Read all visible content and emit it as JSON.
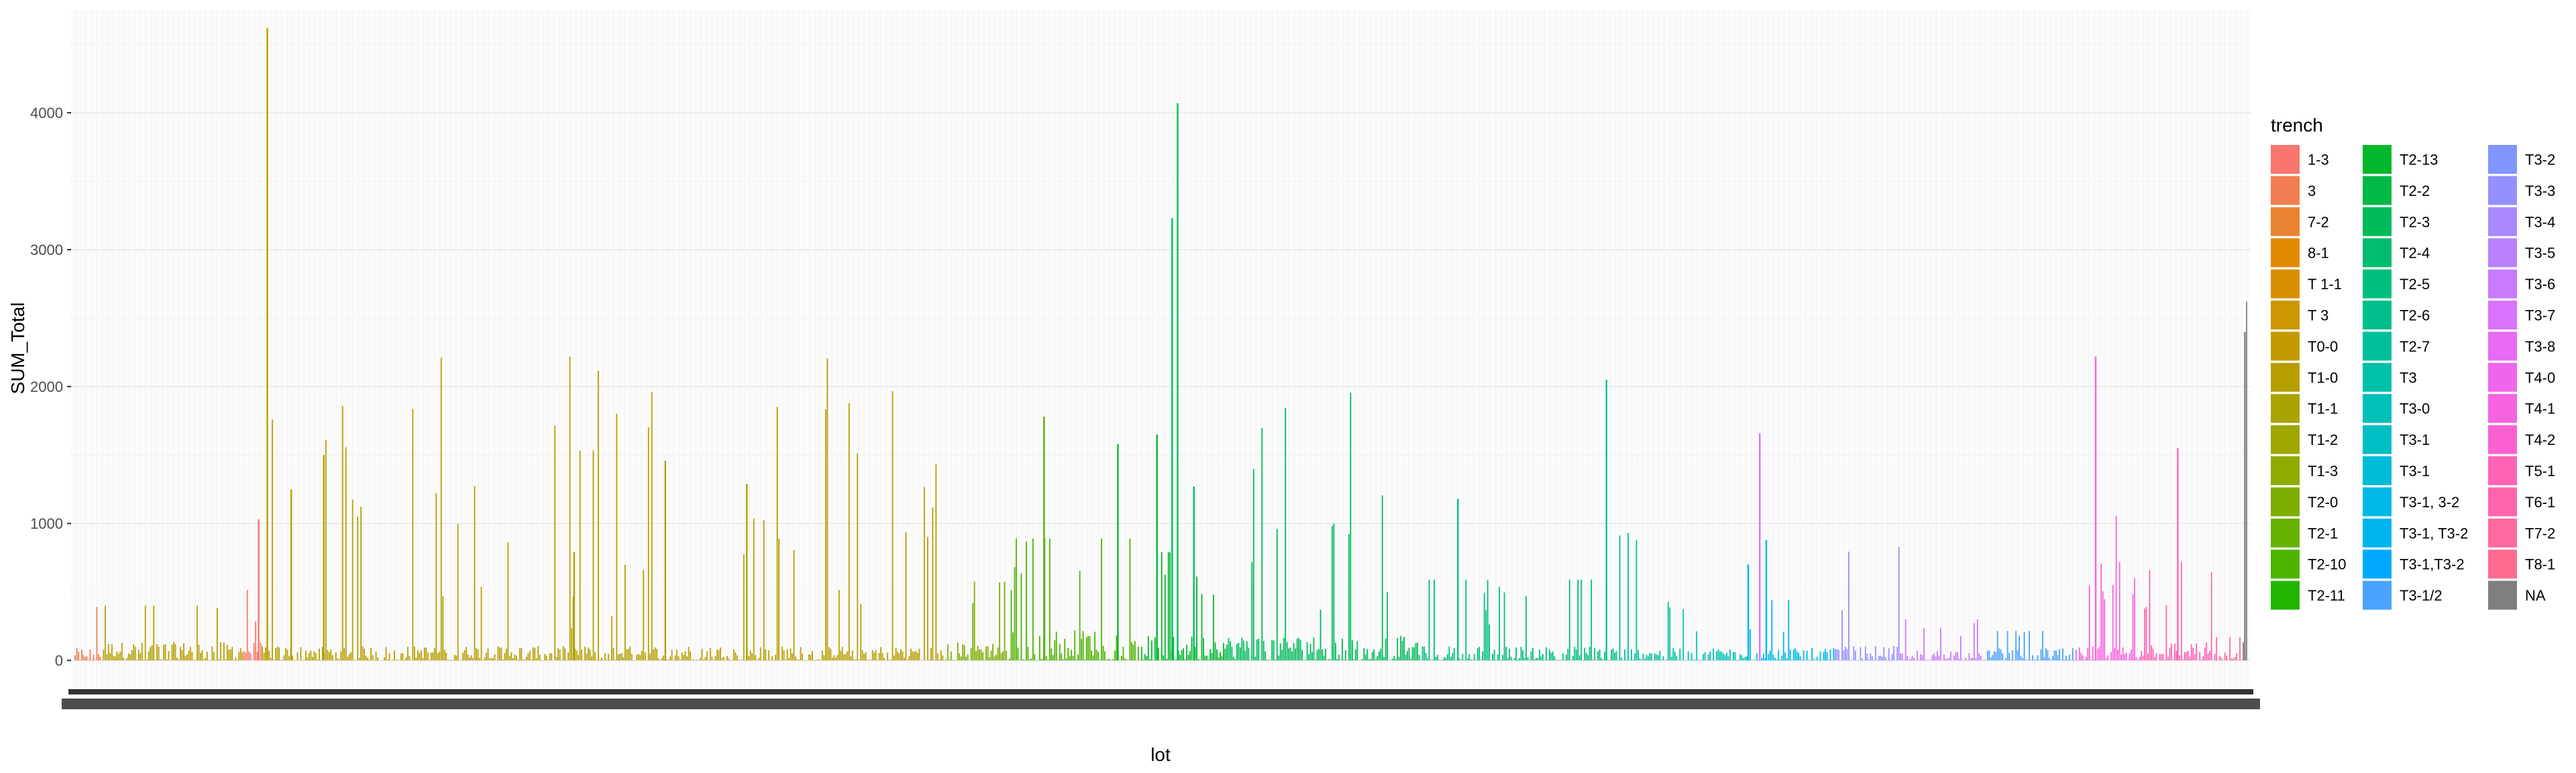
{
  "chart_data": {
    "type": "bar",
    "title": "",
    "xlabel": "lot",
    "ylabel": "SUM_Total",
    "ylim": [
      -200,
      4750
    ],
    "y_ticks": [
      0,
      1000,
      2000,
      3000,
      4000
    ],
    "y_tick_labels": [
      "0",
      "1000",
      "2000",
      "3000",
      "4000"
    ],
    "grid": true,
    "x_tick_labels_note": "x-axis tick labels are overplotted and illegible",
    "legend": {
      "title": "trench",
      "position": "right",
      "entries": [
        {
          "label": "1-3",
          "color": "#F8766D"
        },
        {
          "label": "3",
          "color": "#F27D52"
        },
        {
          "label": "7-2",
          "color": "#EA8331"
        },
        {
          "label": "8-1",
          "color": "#E18A00"
        },
        {
          "label": "T 1-1",
          "color": "#D89000"
        },
        {
          "label": "T 3",
          "color": "#CE9600"
        },
        {
          "label": "T0-0",
          "color": "#C49A00"
        },
        {
          "label": "T1-0",
          "color": "#B79F00"
        },
        {
          "label": "T1-1",
          "color": "#ABA300"
        },
        {
          "label": "T1-2",
          "color": "#9DA700"
        },
        {
          "label": "T1-3",
          "color": "#8EAB00"
        },
        {
          "label": "T2-0",
          "color": "#7CAE00"
        },
        {
          "label": "T2-1",
          "color": "#67B100"
        },
        {
          "label": "T2-10",
          "color": "#4DB400"
        },
        {
          "label": "T2-11",
          "color": "#22B600"
        },
        {
          "label": "T2-13",
          "color": "#00B82B"
        },
        {
          "label": "T2-2",
          "color": "#00BA45"
        },
        {
          "label": "T2-3",
          "color": "#00BB5A"
        },
        {
          "label": "T2-4",
          "color": "#00BC6C"
        },
        {
          "label": "T2-5",
          "color": "#00BE7D"
        },
        {
          "label": "T2-6",
          "color": "#00BF8D"
        },
        {
          "label": "T2-7",
          "color": "#00C09C"
        },
        {
          "label": "T3",
          "color": "#00C0AB"
        },
        {
          "label": "T3-0",
          "color": "#00C0B8"
        },
        {
          "label": "T3-1",
          "color": "#00BFC4"
        },
        {
          "label": "T3-1",
          "color": "#00BCD8"
        },
        {
          "label": "T3-1, 3-2",
          "color": "#00B8E5"
        },
        {
          "label": "T3-1, T3-2",
          "color": "#00B4F0"
        },
        {
          "label": "T3-1,T3-2",
          "color": "#00A9FF"
        },
        {
          "label": "T3-1/2",
          "color": "#4AA3FF"
        },
        {
          "label": "T3-2",
          "color": "#7F96FF"
        },
        {
          "label": "T3-3",
          "color": "#9590FF"
        },
        {
          "label": "T3-4",
          "color": "#A989FF"
        },
        {
          "label": "T3-5",
          "color": "#BA81FF"
        },
        {
          "label": "T3-6",
          "color": "#C97AFF"
        },
        {
          "label": "T3-7",
          "color": "#DA72FB"
        },
        {
          "label": "T3-8",
          "color": "#E76BF3"
        },
        {
          "label": "T4-0",
          "color": "#F066EA"
        },
        {
          "label": "T4-1",
          "color": "#F863DF"
        },
        {
          "label": "T4-2",
          "color": "#FD61D1"
        },
        {
          "label": "T5-1",
          "color": "#FF63B6"
        },
        {
          "label": "T6-1",
          "color": "#FF65AC"
        },
        {
          "label": "T7-2",
          "color": "#FF6AA0"
        },
        {
          "label": "T8-1",
          "color": "#FF6C91"
        },
        {
          "label": "NA",
          "color": "#7F7F7F"
        }
      ]
    },
    "segments": [
      {
        "trench_index": 1,
        "lot_range": [
          0.0,
          0.013
        ],
        "max": 780,
        "typical": 60
      },
      {
        "trench_index": 7,
        "lot_range": [
          0.013,
          0.077
        ],
        "max": 800,
        "typical": 90
      },
      {
        "trench_index": 0,
        "lot_range": [
          0.077,
          0.086
        ],
        "max": 1030,
        "typical": 90
      },
      {
        "trench_index": 7,
        "lot_range": [
          0.086,
          0.4
        ],
        "max": 4620,
        "typical": 70
      },
      {
        "trench_index": 11,
        "lot_range": [
          0.4,
          0.43
        ],
        "max": 1150,
        "typical": 90
      },
      {
        "trench_index": 13,
        "lot_range": [
          0.43,
          0.49
        ],
        "max": 1780,
        "typical": 150
      },
      {
        "trench_index": 15,
        "lot_range": [
          0.49,
          0.53
        ],
        "max": 1580,
        "typical": 120
      },
      {
        "trench_index": 17,
        "lot_range": [
          0.53,
          0.62
        ],
        "max": 4070,
        "typical": 120
      },
      {
        "trench_index": 19,
        "lot_range": [
          0.62,
          0.71
        ],
        "max": 1180,
        "typical": 70
      },
      {
        "trench_index": 21,
        "lot_range": [
          0.71,
          0.74
        ],
        "max": 2050,
        "typical": 60
      },
      {
        "trench_index": 23,
        "lot_range": [
          0.74,
          0.77
        ],
        "max": 750,
        "typical": 60
      },
      {
        "trench_index": 26,
        "lot_range": [
          0.77,
          0.81
        ],
        "max": 880,
        "typical": 60
      },
      {
        "trench_index": 31,
        "lot_range": [
          0.81,
          0.84
        ],
        "max": 1660,
        "typical": 70
      },
      {
        "trench_index": 34,
        "lot_range": [
          0.84,
          0.88
        ],
        "max": 600,
        "typical": 50
      },
      {
        "trench_index": 29,
        "lot_range": [
          0.88,
          0.92
        ],
        "max": 430,
        "typical": 60
      },
      {
        "trench_index": 38,
        "lot_range": [
          0.92,
          0.952
        ],
        "max": 2220,
        "typical": 70
      },
      {
        "trench_index": 40,
        "lot_range": [
          0.952,
          0.985
        ],
        "max": 1550,
        "typical": 90
      },
      {
        "trench_index": 42,
        "lot_range": [
          0.985,
          0.998
        ],
        "max": 340,
        "typical": 40
      },
      {
        "trench_index": 44,
        "lot_range": [
          0.998,
          1.0
        ],
        "max": 2400,
        "typical": 2400
      }
    ],
    "highlighted_bars": [
      {
        "lot_pos": 0.0845,
        "value": 1030,
        "trench_index": 0
      },
      {
        "lot_pos": 0.0885,
        "value": 4620,
        "trench_index": 7
      },
      {
        "lot_pos": 0.1145,
        "value": 1500,
        "trench_index": 7
      },
      {
        "lot_pos": 0.0995,
        "value": 1250,
        "trench_index": 7
      },
      {
        "lot_pos": 0.2718,
        "value": 1460,
        "trench_index": 8
      },
      {
        "lot_pos": 0.3093,
        "value": 1290,
        "trench_index": 8
      },
      {
        "lot_pos": 0.2298,
        "value": 790,
        "trench_index": 8
      },
      {
        "lot_pos": 0.4462,
        "value": 1780,
        "trench_index": 13
      },
      {
        "lot_pos": 0.4802,
        "value": 1580,
        "trench_index": 15
      },
      {
        "lot_pos": 0.4982,
        "value": 1650,
        "trench_index": 15
      },
      {
        "lot_pos": 0.5052,
        "value": 3230,
        "trench_index": 17
      },
      {
        "lot_pos": 0.5077,
        "value": 4070,
        "trench_index": 17
      },
      {
        "lot_pos": 0.5152,
        "value": 1270,
        "trench_index": 17
      },
      {
        "lot_pos": 0.6368,
        "value": 1180,
        "trench_index": 20
      },
      {
        "lot_pos": 0.7052,
        "value": 2050,
        "trench_index": 21
      },
      {
        "lot_pos": 0.7788,
        "value": 880,
        "trench_index": 26
      },
      {
        "lot_pos": 0.7705,
        "value": 700,
        "trench_index": 27
      },
      {
        "lot_pos": 0.7758,
        "value": 1660,
        "trench_index": 35
      },
      {
        "lot_pos": 0.9305,
        "value": 2220,
        "trench_index": 38
      },
      {
        "lot_pos": 0.9683,
        "value": 1550,
        "trench_index": 40
      },
      {
        "lot_pos": 0.9992,
        "value": 2400,
        "trench_index": 44
      }
    ]
  }
}
